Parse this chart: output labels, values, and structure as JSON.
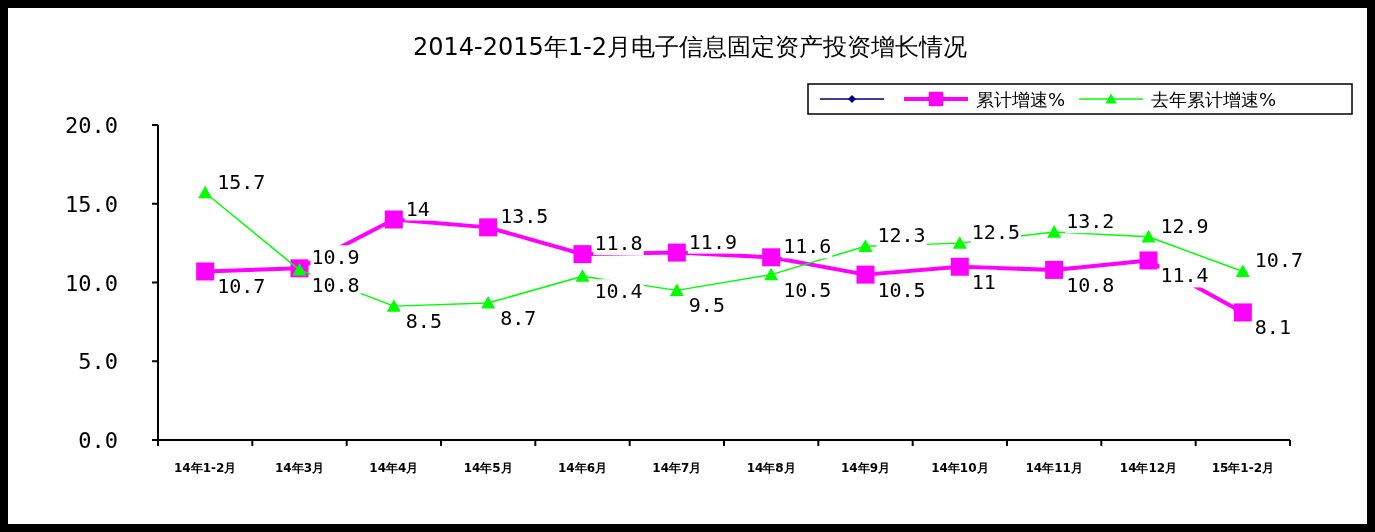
{
  "chart_data": {
    "type": "line",
    "title": "2014-2015年1-2月电子信息固定资产投资增长情况",
    "categories": [
      "14年1-2月",
      "14年3月",
      "14年4月",
      "14年5月",
      "14年6月",
      "14年7月",
      "14年8月",
      "14年9月",
      "14年10月",
      "14年11月",
      "14年12月",
      "15年1-2月"
    ],
    "series": [
      {
        "color": "#000080",
        "marker": "diamond",
        "values": [
          null,
          null,
          null,
          null,
          null,
          null,
          null,
          null,
          null,
          null,
          null,
          null
        ]
      },
      {
        "name": "累计增速%",
        "color": "#ff00ff",
        "marker": "square",
        "values": [
          10.7,
          10.9,
          14,
          13.5,
          11.8,
          11.9,
          11.6,
          10.5,
          11,
          10.8,
          11.4,
          8.1
        ]
      },
      {
        "name": "去年累计增速%",
        "color": "#00ff00",
        "marker": "triangle",
        "values": [
          15.7,
          10.8,
          8.5,
          8.7,
          10.4,
          9.5,
          10.5,
          12.3,
          12.5,
          13.2,
          12.9,
          10.7
        ]
      }
    ],
    "ylim": [
      0,
      20
    ],
    "yticks": [
      {
        "value": 0,
        "label": "0.0"
      },
      {
        "value": 5,
        "label": "5.0"
      },
      {
        "value": 10,
        "label": "10.0"
      },
      {
        "value": 15,
        "label": "15.0"
      },
      {
        "value": 20,
        "label": "20.0"
      }
    ],
    "data_labels": true,
    "legend": "top right",
    "grid": false
  }
}
